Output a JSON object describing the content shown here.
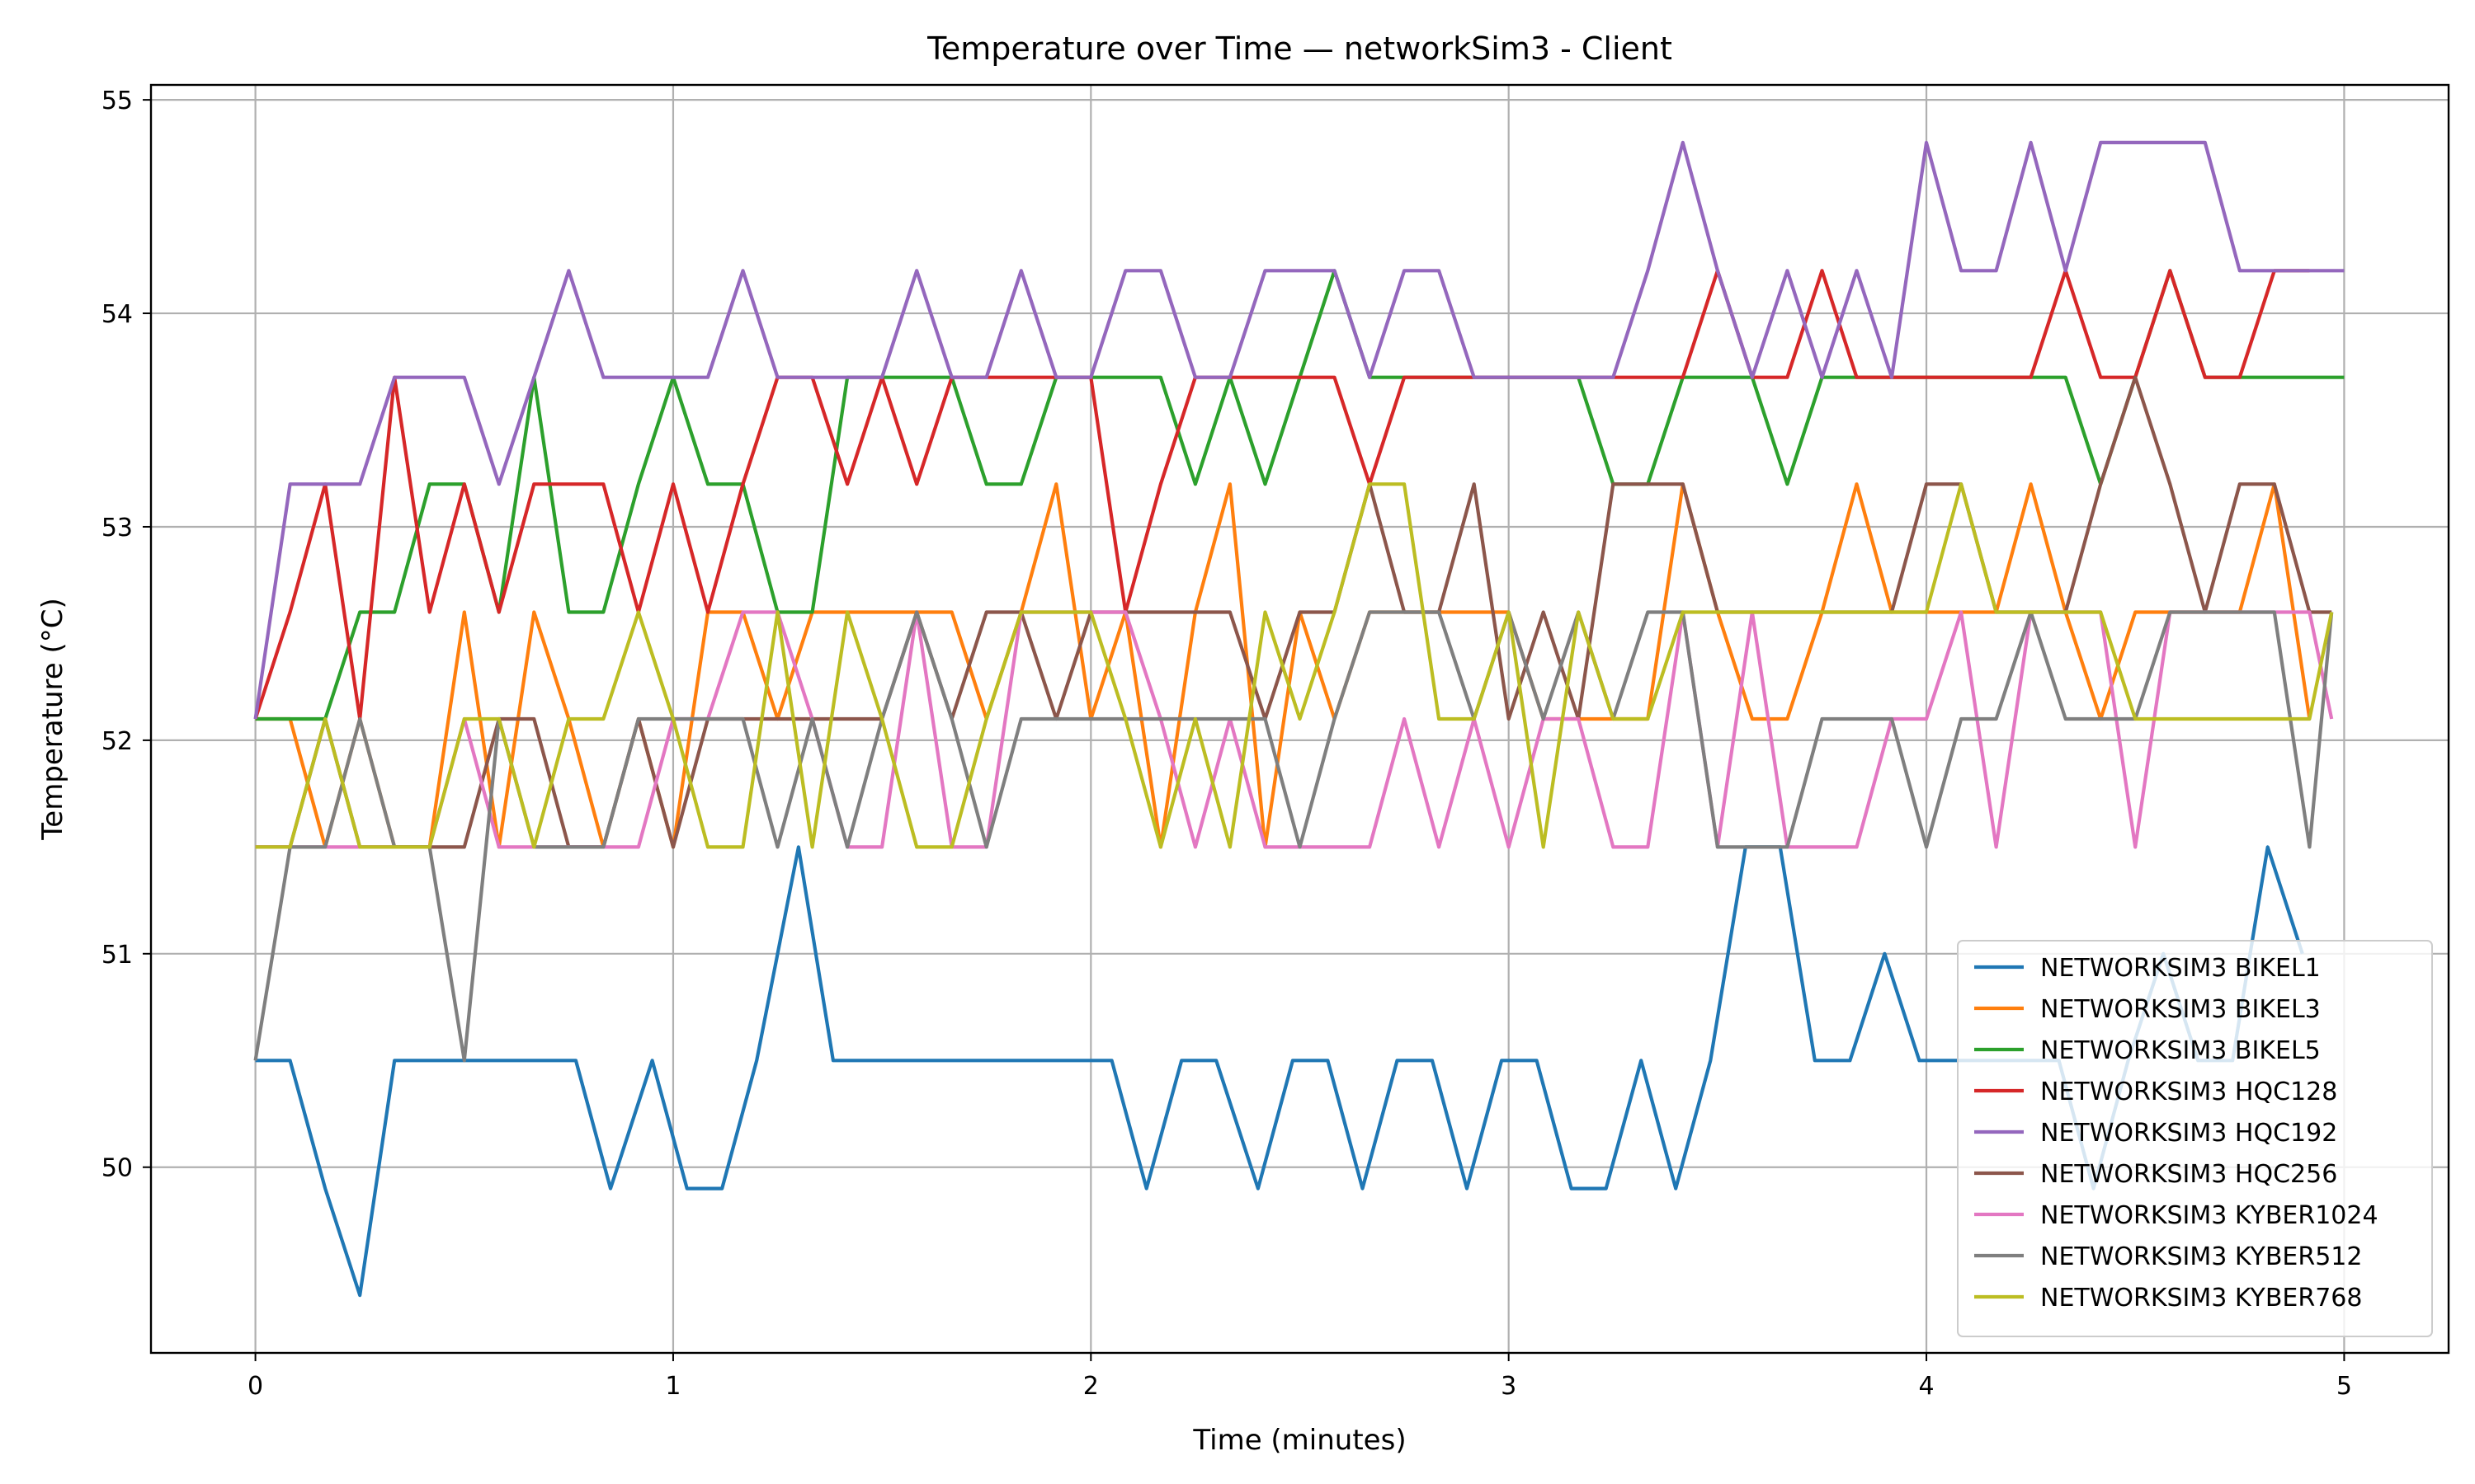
{
  "chart_data": {
    "type": "line",
    "title": "Temperature over Time — networkSim3 - Client",
    "xlabel": "Time (minutes)",
    "ylabel": "Temperature (°C)",
    "xlim": [
      -0.25,
      5.25
    ],
    "ylim": [
      49.13,
      55.07
    ],
    "xticks": [
      0,
      1,
      2,
      3,
      4,
      5
    ],
    "xtick_labels": [
      "0",
      "1",
      "2",
      "3",
      "4",
      "5"
    ],
    "yticks": [
      50,
      51,
      52,
      53,
      54,
      55
    ],
    "ytick_labels": [
      "50",
      "51",
      "52",
      "53",
      "54",
      "55"
    ],
    "grid": true,
    "legend_position": "lower right",
    "series": [
      {
        "name": "NETWORKSIM3 BIKEL1",
        "color": "#1f77b4",
        "x": [
          0,
          0.083,
          0.167,
          0.25,
          0.333,
          0.417,
          0.5,
          0.583,
          0.667,
          0.767,
          0.85,
          0.95,
          1.033,
          1.117,
          1.2,
          1.3,
          1.383,
          1.467,
          1.55,
          1.633,
          1.717,
          1.8,
          1.883,
          1.967,
          2.05,
          2.133,
          2.217,
          2.3,
          2.4,
          2.483,
          2.567,
          2.65,
          2.733,
          2.817,
          2.9,
          2.983,
          3.067,
          3.15,
          3.233,
          3.317,
          3.4,
          3.483,
          3.567,
          3.65,
          3.733,
          3.817,
          3.9,
          3.983,
          4.067,
          4.15,
          4.233,
          4.317,
          4.4,
          4.483,
          4.567,
          4.65,
          4.733,
          4.817,
          4.9
        ],
        "y": [
          50.5,
          50.5,
          49.9,
          49.4,
          50.5,
          50.5,
          50.5,
          50.5,
          50.5,
          50.5,
          49.9,
          50.5,
          49.9,
          49.9,
          50.5,
          51.5,
          50.5,
          50.5,
          50.5,
          50.5,
          50.5,
          50.5,
          50.5,
          50.5,
          50.5,
          49.9,
          50.5,
          50.5,
          49.9,
          50.5,
          50.5,
          49.9,
          50.5,
          50.5,
          49.9,
          50.5,
          50.5,
          49.9,
          49.9,
          50.5,
          49.9,
          50.5,
          51.5,
          51.5,
          50.5,
          50.5,
          51.0,
          50.5,
          50.5,
          50.5,
          50.5,
          50.5,
          49.9,
          50.5,
          51.0,
          50.5,
          50.5,
          51.5,
          51.0
        ]
      },
      {
        "name": "NETWORKSIM3 BIKEL3",
        "color": "#ff7f0e",
        "x": [
          0,
          0.083,
          0.167,
          0.25,
          0.333,
          0.417,
          0.5,
          0.583,
          0.667,
          0.75,
          0.833,
          0.917,
          1.0,
          1.083,
          1.167,
          1.25,
          1.333,
          1.417,
          1.5,
          1.583,
          1.667,
          1.75,
          1.833,
          1.917,
          2.0,
          2.083,
          2.167,
          2.25,
          2.333,
          2.417,
          2.5,
          2.583,
          2.667,
          2.75,
          2.833,
          2.917,
          3.0,
          3.083,
          3.167,
          3.25,
          3.333,
          3.417,
          3.5,
          3.583,
          3.667,
          3.75,
          3.833,
          3.917,
          4.0,
          4.083,
          4.167,
          4.25,
          4.333,
          4.417,
          4.5,
          4.583,
          4.667,
          4.75,
          4.833,
          4.917
        ],
        "y": [
          52.1,
          52.1,
          51.5,
          52.1,
          51.5,
          51.5,
          52.6,
          51.5,
          52.6,
          52.1,
          51.5,
          52.1,
          51.5,
          52.6,
          52.6,
          52.1,
          52.6,
          52.6,
          52.6,
          52.6,
          52.6,
          52.1,
          52.6,
          53.2,
          52.1,
          52.6,
          51.5,
          52.6,
          53.2,
          51.5,
          52.6,
          52.1,
          52.6,
          52.6,
          52.6,
          52.6,
          52.6,
          52.1,
          52.1,
          52.1,
          52.1,
          53.2,
          52.6,
          52.1,
          52.1,
          52.6,
          53.2,
          52.6,
          52.6,
          52.6,
          52.6,
          53.2,
          52.6,
          52.1,
          52.6,
          52.6,
          52.6,
          52.6,
          53.2,
          52.1
        ]
      },
      {
        "name": "NETWORKSIM3 BIKEL5",
        "color": "#2ca02c",
        "x": [
          0,
          0.083,
          0.167,
          0.25,
          0.333,
          0.417,
          0.5,
          0.583,
          0.667,
          0.75,
          0.833,
          0.917,
          1.0,
          1.083,
          1.167,
          1.25,
          1.333,
          1.417,
          1.5,
          1.583,
          1.667,
          1.75,
          1.833,
          1.917,
          2.0,
          2.083,
          2.167,
          2.25,
          2.333,
          2.417,
          2.5,
          2.583,
          2.667,
          2.75,
          2.833,
          2.917,
          3.0,
          3.083,
          3.167,
          3.25,
          3.333,
          3.417,
          3.5,
          3.583,
          3.667,
          3.75,
          3.833,
          3.917,
          4.0,
          4.083,
          4.167,
          4.25,
          4.333,
          4.417,
          4.5,
          4.583,
          4.667,
          4.75,
          4.833,
          4.917,
          5.0
        ],
        "y": [
          52.1,
          52.1,
          52.1,
          52.6,
          52.6,
          53.2,
          53.2,
          52.6,
          53.7,
          52.6,
          52.6,
          53.2,
          53.7,
          53.2,
          53.2,
          52.6,
          52.6,
          53.7,
          53.7,
          53.7,
          53.7,
          53.2,
          53.2,
          53.7,
          53.7,
          53.7,
          53.7,
          53.2,
          53.7,
          53.2,
          53.7,
          54.2,
          53.7,
          53.7,
          53.7,
          53.7,
          53.7,
          53.7,
          53.7,
          53.2,
          53.2,
          53.7,
          53.7,
          53.7,
          53.2,
          53.7,
          53.7,
          53.7,
          53.7,
          53.7,
          53.7,
          53.7,
          53.7,
          53.2,
          53.7,
          54.2,
          53.7,
          53.7,
          53.7,
          53.7,
          53.7
        ]
      },
      {
        "name": "NETWORKSIM3 HQC128",
        "color": "#d62728",
        "x": [
          0,
          0.083,
          0.167,
          0.25,
          0.333,
          0.417,
          0.5,
          0.583,
          0.667,
          0.75,
          0.833,
          0.917,
          1.0,
          1.083,
          1.167,
          1.25,
          1.333,
          1.417,
          1.5,
          1.583,
          1.667,
          1.75,
          1.833,
          1.917,
          2.0,
          2.083,
          2.167,
          2.25,
          2.333,
          2.417,
          2.5,
          2.583,
          2.667,
          2.75,
          2.833,
          2.917,
          3.0,
          3.083,
          3.167,
          3.25,
          3.333,
          3.417,
          3.5,
          3.583,
          3.667,
          3.75,
          3.833,
          3.917,
          4.0,
          4.083,
          4.167,
          4.25,
          4.333,
          4.417,
          4.5,
          4.583,
          4.667,
          4.75,
          4.833,
          4.917
        ],
        "y": [
          52.1,
          52.6,
          53.2,
          52.1,
          53.7,
          52.6,
          53.2,
          52.6,
          53.2,
          53.2,
          53.2,
          52.6,
          53.2,
          52.6,
          53.2,
          53.7,
          53.7,
          53.2,
          53.7,
          53.2,
          53.7,
          53.7,
          53.7,
          53.7,
          53.7,
          52.6,
          53.2,
          53.7,
          53.7,
          53.7,
          53.7,
          53.7,
          53.2,
          53.7,
          53.7,
          53.7,
          53.7,
          53.7,
          53.7,
          53.7,
          53.7,
          53.7,
          54.2,
          53.7,
          53.7,
          54.2,
          53.7,
          53.7,
          53.7,
          53.7,
          53.7,
          53.7,
          54.2,
          53.7,
          53.7,
          54.2,
          53.7,
          53.7,
          54.2,
          54.2
        ]
      },
      {
        "name": "NETWORKSIM3 HQC192",
        "color": "#9467bd",
        "x": [
          0,
          0.083,
          0.167,
          0.25,
          0.333,
          0.417,
          0.5,
          0.583,
          0.667,
          0.75,
          0.833,
          0.917,
          1.0,
          1.083,
          1.167,
          1.25,
          1.333,
          1.417,
          1.5,
          1.583,
          1.667,
          1.75,
          1.833,
          1.917,
          2.0,
          2.083,
          2.167,
          2.25,
          2.333,
          2.417,
          2.5,
          2.583,
          2.667,
          2.75,
          2.833,
          2.917,
          3.0,
          3.083,
          3.167,
          3.25,
          3.333,
          3.417,
          3.5,
          3.583,
          3.667,
          3.75,
          3.833,
          3.917,
          4.0,
          4.083,
          4.167,
          4.25,
          4.333,
          4.417,
          4.5,
          4.583,
          4.667,
          4.75,
          4.833,
          4.917,
          5.0
        ],
        "y": [
          52.1,
          53.2,
          53.2,
          53.2,
          53.7,
          53.7,
          53.7,
          53.2,
          53.7,
          54.2,
          53.7,
          53.7,
          53.7,
          53.7,
          54.2,
          53.7,
          53.7,
          53.7,
          53.7,
          54.2,
          53.7,
          53.7,
          54.2,
          53.7,
          53.7,
          54.2,
          54.2,
          53.7,
          53.7,
          54.2,
          54.2,
          54.2,
          53.7,
          54.2,
          54.2,
          53.7,
          53.7,
          53.7,
          53.7,
          53.7,
          54.2,
          54.8,
          54.2,
          53.7,
          54.2,
          53.7,
          54.2,
          53.7,
          54.8,
          54.2,
          54.2,
          54.8,
          54.2,
          54.8,
          54.8,
          54.8,
          54.8,
          54.2,
          54.2,
          54.2,
          54.2
        ]
      },
      {
        "name": "NETWORKSIM3 HQC256",
        "color": "#8c564b",
        "x": [
          0,
          0.083,
          0.167,
          0.25,
          0.333,
          0.417,
          0.5,
          0.583,
          0.667,
          0.75,
          0.833,
          0.917,
          1.0,
          1.083,
          1.167,
          1.25,
          1.333,
          1.417,
          1.5,
          1.583,
          1.667,
          1.75,
          1.833,
          1.917,
          2.0,
          2.083,
          2.167,
          2.25,
          2.333,
          2.417,
          2.5,
          2.583,
          2.667,
          2.75,
          2.833,
          2.917,
          3.0,
          3.083,
          3.167,
          3.25,
          3.333,
          3.417,
          3.5,
          3.583,
          3.667,
          3.75,
          3.833,
          3.917,
          4.0,
          4.083,
          4.167,
          4.25,
          4.333,
          4.417,
          4.5,
          4.583,
          4.667,
          4.75,
          4.833,
          4.917,
          4.97
        ],
        "y": [
          51.5,
          51.5,
          52.1,
          51.5,
          51.5,
          51.5,
          51.5,
          52.1,
          52.1,
          51.5,
          51.5,
          52.1,
          51.5,
          52.1,
          52.1,
          52.1,
          52.1,
          52.1,
          52.1,
          52.6,
          52.1,
          52.6,
          52.6,
          52.1,
          52.6,
          52.6,
          52.6,
          52.6,
          52.6,
          52.1,
          52.6,
          52.6,
          53.2,
          52.6,
          52.6,
          53.2,
          52.1,
          52.6,
          52.1,
          53.2,
          53.2,
          53.2,
          52.6,
          52.6,
          52.6,
          52.6,
          52.6,
          52.6,
          53.2,
          53.2,
          52.6,
          52.6,
          52.6,
          53.2,
          53.7,
          53.2,
          52.6,
          53.2,
          53.2,
          52.6,
          52.6
        ]
      },
      {
        "name": "NETWORKSIM3 KYBER1024",
        "color": "#e377c2",
        "x": [
          0,
          0.083,
          0.167,
          0.25,
          0.333,
          0.417,
          0.5,
          0.583,
          0.667,
          0.75,
          0.833,
          0.917,
          1.0,
          1.083,
          1.167,
          1.25,
          1.333,
          1.417,
          1.5,
          1.583,
          1.667,
          1.75,
          1.833,
          1.917,
          2.0,
          2.083,
          2.167,
          2.25,
          2.333,
          2.417,
          2.5,
          2.583,
          2.667,
          2.75,
          2.833,
          2.917,
          3.0,
          3.083,
          3.167,
          3.25,
          3.333,
          3.417,
          3.5,
          3.583,
          3.667,
          3.75,
          3.833,
          3.917,
          4.0,
          4.083,
          4.167,
          4.25,
          4.333,
          4.417,
          4.5,
          4.583,
          4.667,
          4.75,
          4.833,
          4.917,
          4.97
        ],
        "y": [
          51.5,
          51.5,
          51.5,
          51.5,
          51.5,
          51.5,
          52.1,
          51.5,
          51.5,
          51.5,
          51.5,
          51.5,
          52.1,
          52.1,
          52.6,
          52.6,
          52.1,
          51.5,
          51.5,
          52.6,
          51.5,
          51.5,
          52.6,
          52.6,
          52.6,
          52.6,
          52.1,
          51.5,
          52.1,
          51.5,
          51.5,
          51.5,
          51.5,
          52.1,
          51.5,
          52.1,
          51.5,
          52.1,
          52.1,
          51.5,
          51.5,
          52.6,
          51.5,
          52.6,
          51.5,
          51.5,
          51.5,
          52.1,
          52.1,
          52.6,
          51.5,
          52.6,
          52.6,
          52.6,
          51.5,
          52.6,
          52.6,
          52.6,
          52.6,
          52.6,
          52.1
        ]
      },
      {
        "name": "NETWORKSIM3 KYBER512",
        "color": "#7f7f7f",
        "x": [
          0,
          0.083,
          0.167,
          0.25,
          0.333,
          0.417,
          0.5,
          0.583,
          0.667,
          0.75,
          0.833,
          0.917,
          1.0,
          1.083,
          1.167,
          1.25,
          1.333,
          1.417,
          1.5,
          1.583,
          1.667,
          1.75,
          1.833,
          1.917,
          2.0,
          2.083,
          2.167,
          2.25,
          2.333,
          2.417,
          2.5,
          2.583,
          2.667,
          2.75,
          2.833,
          2.917,
          3.0,
          3.083,
          3.167,
          3.25,
          3.333,
          3.417,
          3.5,
          3.583,
          3.667,
          3.75,
          3.833,
          3.917,
          4.0,
          4.083,
          4.167,
          4.25,
          4.333,
          4.417,
          4.5,
          4.583,
          4.667,
          4.75,
          4.833,
          4.917,
          4.97
        ],
        "y": [
          50.5,
          51.5,
          51.5,
          52.1,
          51.5,
          51.5,
          50.5,
          52.1,
          51.5,
          51.5,
          51.5,
          52.1,
          52.1,
          52.1,
          52.1,
          51.5,
          52.1,
          51.5,
          52.1,
          52.6,
          52.1,
          51.5,
          52.1,
          52.1,
          52.1,
          52.1,
          52.1,
          52.1,
          52.1,
          52.1,
          51.5,
          52.1,
          52.6,
          52.6,
          52.6,
          52.1,
          52.6,
          52.1,
          52.6,
          52.1,
          52.6,
          52.6,
          51.5,
          51.5,
          51.5,
          52.1,
          52.1,
          52.1,
          51.5,
          52.1,
          52.1,
          52.6,
          52.1,
          52.1,
          52.1,
          52.6,
          52.6,
          52.6,
          52.6,
          51.5,
          52.6
        ]
      },
      {
        "name": "NETWORKSIM3 KYBER768",
        "color": "#bcbd22",
        "x": [
          0,
          0.083,
          0.167,
          0.25,
          0.333,
          0.417,
          0.5,
          0.583,
          0.667,
          0.75,
          0.833,
          0.917,
          1.0,
          1.083,
          1.167,
          1.25,
          1.333,
          1.417,
          1.5,
          1.583,
          1.667,
          1.75,
          1.833,
          1.917,
          2.0,
          2.083,
          2.167,
          2.25,
          2.333,
          2.417,
          2.5,
          2.583,
          2.667,
          2.75,
          2.833,
          2.917,
          3.0,
          3.083,
          3.167,
          3.25,
          3.333,
          3.417,
          3.5,
          3.583,
          3.667,
          3.75,
          3.833,
          3.917,
          4.0,
          4.083,
          4.167,
          4.25,
          4.333,
          4.417,
          4.5,
          4.583,
          4.667,
          4.75,
          4.833,
          4.917,
          4.97
        ],
        "y": [
          51.5,
          51.5,
          52.1,
          51.5,
          51.5,
          51.5,
          52.1,
          52.1,
          51.5,
          52.1,
          52.1,
          52.6,
          52.1,
          51.5,
          51.5,
          52.6,
          51.5,
          52.6,
          52.1,
          51.5,
          51.5,
          52.1,
          52.6,
          52.6,
          52.6,
          52.1,
          51.5,
          52.1,
          51.5,
          52.6,
          52.1,
          52.6,
          53.2,
          53.2,
          52.1,
          52.1,
          52.6,
          51.5,
          52.6,
          52.1,
          52.1,
          52.6,
          52.6,
          52.6,
          52.6,
          52.6,
          52.6,
          52.6,
          52.6,
          53.2,
          52.6,
          52.6,
          52.6,
          52.6,
          52.1,
          52.1,
          52.1,
          52.1,
          52.1,
          52.1,
          52.6
        ]
      }
    ]
  }
}
